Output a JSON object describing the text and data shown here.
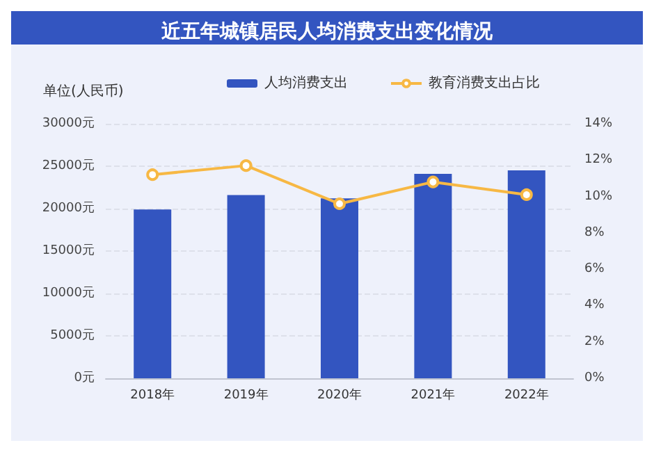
{
  "chart_data": {
    "type": "bar",
    "title": "近五年城镇居民人均消费支出变化情况",
    "ylabel": "单位(人民币)",
    "categories": [
      "2018年",
      "2019年",
      "2020年",
      "2021年",
      "2022年"
    ],
    "series": [
      {
        "name": "人均消费支出",
        "color": "#3355c0",
        "values": [
          19900,
          21600,
          21200,
          24100,
          24500
        ]
      },
      {
        "name": "教育消费支出占比",
        "type": "line",
        "axis": "y2",
        "color": "#f7b844",
        "values": [
          11.2,
          11.7,
          9.6,
          10.8,
          10.1
        ]
      }
    ],
    "ylim": [
      0,
      30000
    ],
    "yticks": [
      {
        "value": 0,
        "label": "0元"
      },
      {
        "value": 5000,
        "label": "5000元"
      },
      {
        "value": 10000,
        "label": "10000元"
      },
      {
        "value": 15000,
        "label": "15000元"
      },
      {
        "value": 20000,
        "label": "20000元"
      },
      {
        "value": 25000,
        "label": "25000元"
      },
      {
        "value": 30000,
        "label": "30000元"
      }
    ],
    "y2lim": [
      0,
      14
    ],
    "y2ticks": [
      {
        "value": 0,
        "label": "0%"
      },
      {
        "value": 2,
        "label": "2%"
      },
      {
        "value": 4,
        "label": "4%"
      },
      {
        "value": 6,
        "label": "6%"
      },
      {
        "value": 8,
        "label": "8%"
      },
      {
        "value": 10,
        "label": "10%"
      },
      {
        "value": 12,
        "label": "12%"
      },
      {
        "value": 14,
        "label": "14%"
      }
    ],
    "grid": "y",
    "legend": "top",
    "marker": "circle"
  }
}
